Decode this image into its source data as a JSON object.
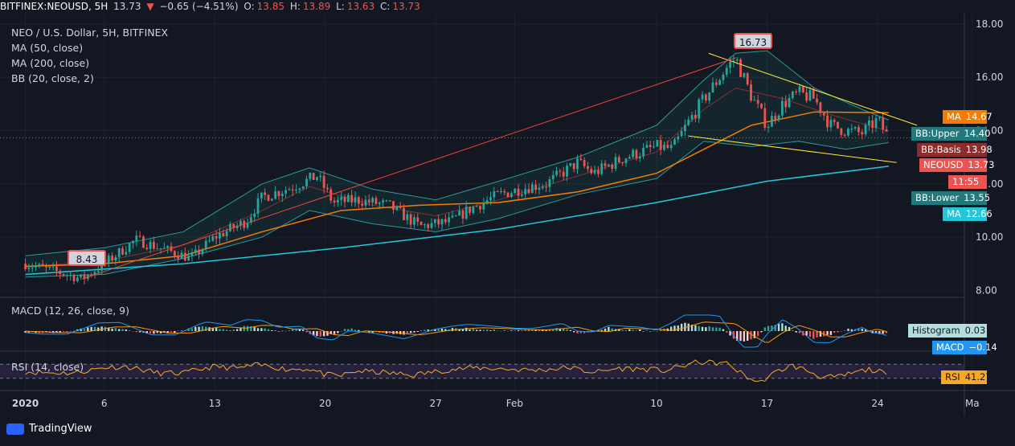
{
  "header": {
    "symbol": "BITFINEX:NEOUSD, 5H",
    "last": "13.73",
    "arrow": "▼",
    "change": "−0.65 (−4.51%)",
    "o_label": "O:",
    "o": "13.85",
    "h_label": "H:",
    "h": "13.89",
    "l_label": "L:",
    "l": "13.63",
    "c_label": "C:",
    "c": "13.73"
  },
  "legend": {
    "title": "NEO / U.S. Dollar, 5H, BITFINEX",
    "ma50": "MA (50, close)",
    "ma200": "MA (200, close)",
    "bb": "BB (20, close, 2)",
    "macd": "MACD (12, 26, close, 9)",
    "rsi": "RSI (14, close)"
  },
  "tags": {
    "ma50": {
      "label": "MA",
      "value": "14.67",
      "color": "#f57c00"
    },
    "bb_upper": {
      "label": "BB:Upper",
      "value": "14.40",
      "color": "#22787a"
    },
    "bb_basis": {
      "label": "BB:Basis",
      "value": "13.98",
      "color": "#8b2d2d"
    },
    "neousd": {
      "label": "NEOUSD",
      "value": "13.73",
      "color": "#ef5350"
    },
    "time": {
      "value": "11:55",
      "color": "#ef5350"
    },
    "bb_lower": {
      "label": "BB:Lower",
      "value": "13.55",
      "color": "#22787a"
    },
    "ma200": {
      "label": "MA",
      "value": "12.66",
      "color": "#26c6da"
    },
    "histogram": {
      "label": "Histogram",
      "value": "0.03",
      "color": "#b2dfdb"
    },
    "macd": {
      "label": "MACD",
      "value": "−0.14",
      "color": "#2196f3"
    },
    "rsi": {
      "label": "RSI",
      "value": "41.27",
      "color": "#f9a825"
    }
  },
  "callouts": {
    "high": "16.73",
    "low": "8.43"
  },
  "footer": {
    "brand": "TradingView"
  },
  "chart_data": {
    "type": "candlestick",
    "title": "NEO / U.S. Dollar, 5H, BITFINEX",
    "y_ticks": [
      "18.00",
      "16.00",
      "14.00",
      "12.00",
      "10.00",
      "8.00"
    ],
    "y_tick_values": [
      18,
      16,
      14,
      12,
      10,
      8
    ],
    "ylim": [
      7.8,
      18.3
    ],
    "x_ticks": [
      "2020",
      "6",
      "13",
      "20",
      "27",
      "Feb",
      "10",
      "17",
      "24",
      "Ma"
    ],
    "x_tick_days": [
      0,
      5,
      12,
      19,
      26,
      31,
      40,
      47,
      54,
      60
    ],
    "xlim_days": [
      -1.2,
      59.5
    ],
    "price_path": [
      [
        0,
        9.0
      ],
      [
        2,
        8.7
      ],
      [
        3.6,
        8.43
      ],
      [
        5,
        9.0
      ],
      [
        7,
        9.9
      ],
      [
        9,
        9.5
      ],
      [
        10.5,
        9.2
      ],
      [
        12,
        10.0
      ],
      [
        14,
        10.6
      ],
      [
        15,
        11.5
      ],
      [
        17,
        11.9
      ],
      [
        18.5,
        12.3
      ],
      [
        19.5,
        11.3
      ],
      [
        21,
        11.4
      ],
      [
        23,
        11.2
      ],
      [
        25,
        10.4
      ],
      [
        27,
        10.6
      ],
      [
        28,
        11.0
      ],
      [
        30,
        11.6
      ],
      [
        32,
        11.9
      ],
      [
        33,
        12.0
      ],
      [
        35,
        12.8
      ],
      [
        36,
        12.4
      ],
      [
        38,
        13.0
      ],
      [
        40,
        13.4
      ],
      [
        41,
        13.3
      ],
      [
        42,
        14.3
      ],
      [
        43,
        15.2
      ],
      [
        44.5,
        16.4
      ],
      [
        45,
        16.73
      ],
      [
        46,
        15.3
      ],
      [
        47,
        14.2
      ],
      [
        48,
        15.0
      ],
      [
        49,
        15.4
      ],
      [
        50,
        15.2
      ],
      [
        51,
        14.2
      ],
      [
        52,
        14.0
      ],
      [
        53,
        13.9
      ],
      [
        54,
        14.4
      ],
      [
        54.7,
        13.73
      ]
    ],
    "ma50_path": [
      [
        0,
        8.9
      ],
      [
        5,
        9.0
      ],
      [
        10,
        9.3
      ],
      [
        15,
        10.2
      ],
      [
        20,
        11.0
      ],
      [
        25,
        11.2
      ],
      [
        30,
        11.3
      ],
      [
        35,
        11.7
      ],
      [
        40,
        12.4
      ],
      [
        43,
        13.3
      ],
      [
        46,
        14.2
      ],
      [
        50,
        14.7
      ],
      [
        54.7,
        14.67
      ]
    ],
    "ma200_path": [
      [
        0,
        8.6
      ],
      [
        10,
        9.0
      ],
      [
        20,
        9.6
      ],
      [
        30,
        10.3
      ],
      [
        40,
        11.3
      ],
      [
        47,
        12.1
      ],
      [
        54.7,
        12.66
      ]
    ],
    "bb_upper_path": [
      [
        0,
        9.3
      ],
      [
        5,
        9.6
      ],
      [
        10,
        10.2
      ],
      [
        15,
        12.0
      ],
      [
        18,
        12.6
      ],
      [
        22,
        11.8
      ],
      [
        26,
        11.4
      ],
      [
        30,
        12.1
      ],
      [
        35,
        13.0
      ],
      [
        40,
        14.2
      ],
      [
        43,
        15.9
      ],
      [
        45,
        16.9
      ],
      [
        47,
        17.0
      ],
      [
        50,
        15.6
      ],
      [
        53,
        14.8
      ],
      [
        54.7,
        14.4
      ]
    ],
    "bb_basis_path": [
      [
        0,
        8.9
      ],
      [
        5,
        9.1
      ],
      [
        10,
        9.7
      ],
      [
        15,
        11.0
      ],
      [
        18,
        11.9
      ],
      [
        22,
        11.2
      ],
      [
        26,
        10.8
      ],
      [
        30,
        11.4
      ],
      [
        35,
        12.3
      ],
      [
        40,
        13.2
      ],
      [
        43,
        14.8
      ],
      [
        45,
        15.6
      ],
      [
        48,
        15.2
      ],
      [
        51,
        14.6
      ],
      [
        54.7,
        13.98
      ]
    ],
    "bb_lower_path": [
      [
        0,
        8.5
      ],
      [
        5,
        8.6
      ],
      [
        10,
        9.2
      ],
      [
        15,
        10.0
      ],
      [
        18,
        11.0
      ],
      [
        22,
        10.5
      ],
      [
        26,
        10.2
      ],
      [
        30,
        10.7
      ],
      [
        35,
        11.6
      ],
      [
        40,
        12.2
      ],
      [
        43,
        13.6
      ],
      [
        46,
        13.4
      ],
      [
        49,
        13.6
      ],
      [
        52,
        13.3
      ],
      [
        54.7,
        13.55
      ]
    ],
    "trendlines": [
      {
        "color": "#ffeb3b",
        "points": [
          [
            43.3,
            16.9
          ],
          [
            56.5,
            14.2
          ]
        ]
      },
      {
        "color": "#ffeb3b",
        "points": [
          [
            42.0,
            13.8
          ],
          [
            55.2,
            12.8
          ]
        ]
      },
      {
        "color": "#f44336",
        "points": [
          [
            3.6,
            8.43
          ],
          [
            45,
            16.73
          ]
        ]
      }
    ],
    "last_price": 13.73,
    "macd": {
      "macd_last": -0.14,
      "histogram_last": 0.03
    },
    "rsi": {
      "last": 41.27,
      "bands": [
        70,
        30
      ]
    }
  }
}
